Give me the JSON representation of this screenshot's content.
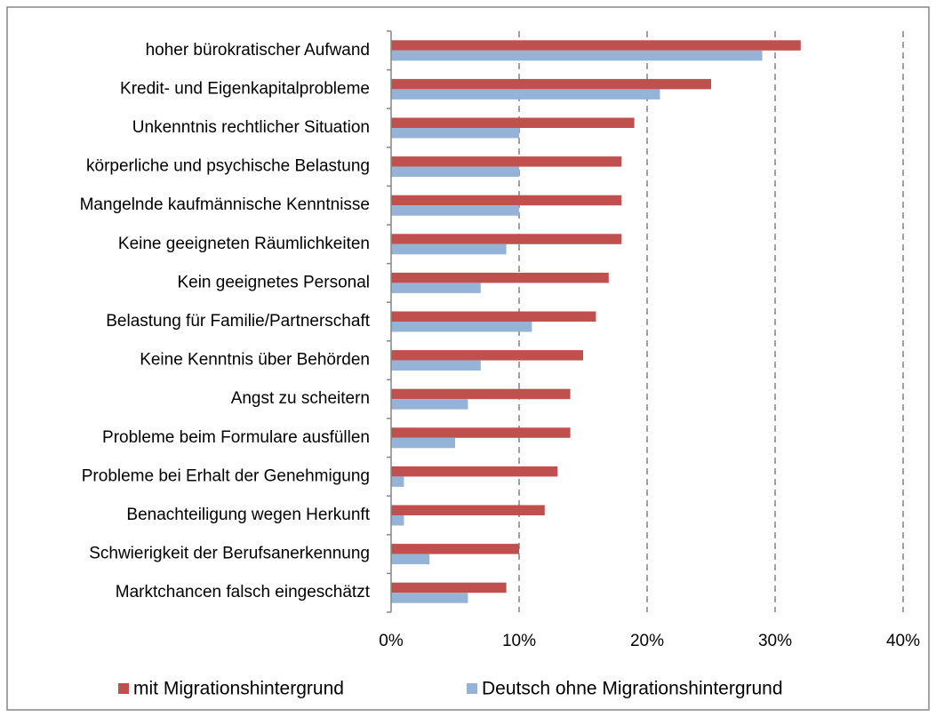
{
  "chart_data": {
    "type": "barh",
    "categories": [
      "hoher bürokratischer Aufwand",
      "Kredit- und Eigenkapitalprobleme",
      "Unkenntnis rechtlicher Situation",
      "körperliche und psychische Belastung",
      "Mangelnde kaufmännische Kenntnisse",
      "Keine geeigneten Räumlichkeiten",
      "Kein geeignetes Personal",
      "Belastung für Familie/Partnerschaft",
      "Keine Kenntnis über Behörden",
      "Angst zu scheitern",
      "Probleme beim Formulare ausfüllen",
      "Probleme bei Erhalt der Genehmigung",
      "Benachteiligung wegen Herkunft",
      "Schwierigkeit der Berufsanerkennung",
      "Marktchancen falsch eingeschätzt"
    ],
    "series": [
      {
        "name": "mit Migrationshintergrund",
        "color": "#c0504d",
        "values": [
          32,
          25,
          19,
          18,
          18,
          18,
          17,
          16,
          15,
          14,
          14,
          13,
          12,
          10,
          9
        ]
      },
      {
        "name": "Deutsch ohne Migrationshintergrund",
        "color": "#95b3d7",
        "values": [
          29,
          21,
          10,
          10,
          10,
          9,
          7,
          11,
          7,
          6,
          5,
          1,
          1,
          3,
          6
        ]
      }
    ],
    "xlim": [
      0,
      40
    ],
    "xticks": [
      {
        "value": 0,
        "label": "0%"
      },
      {
        "value": 10,
        "label": "10%"
      },
      {
        "value": 20,
        "label": "20%"
      },
      {
        "value": 30,
        "label": "30%"
      },
      {
        "value": 40,
        "label": "40%"
      }
    ],
    "grid": true,
    "legend": "bottom"
  }
}
